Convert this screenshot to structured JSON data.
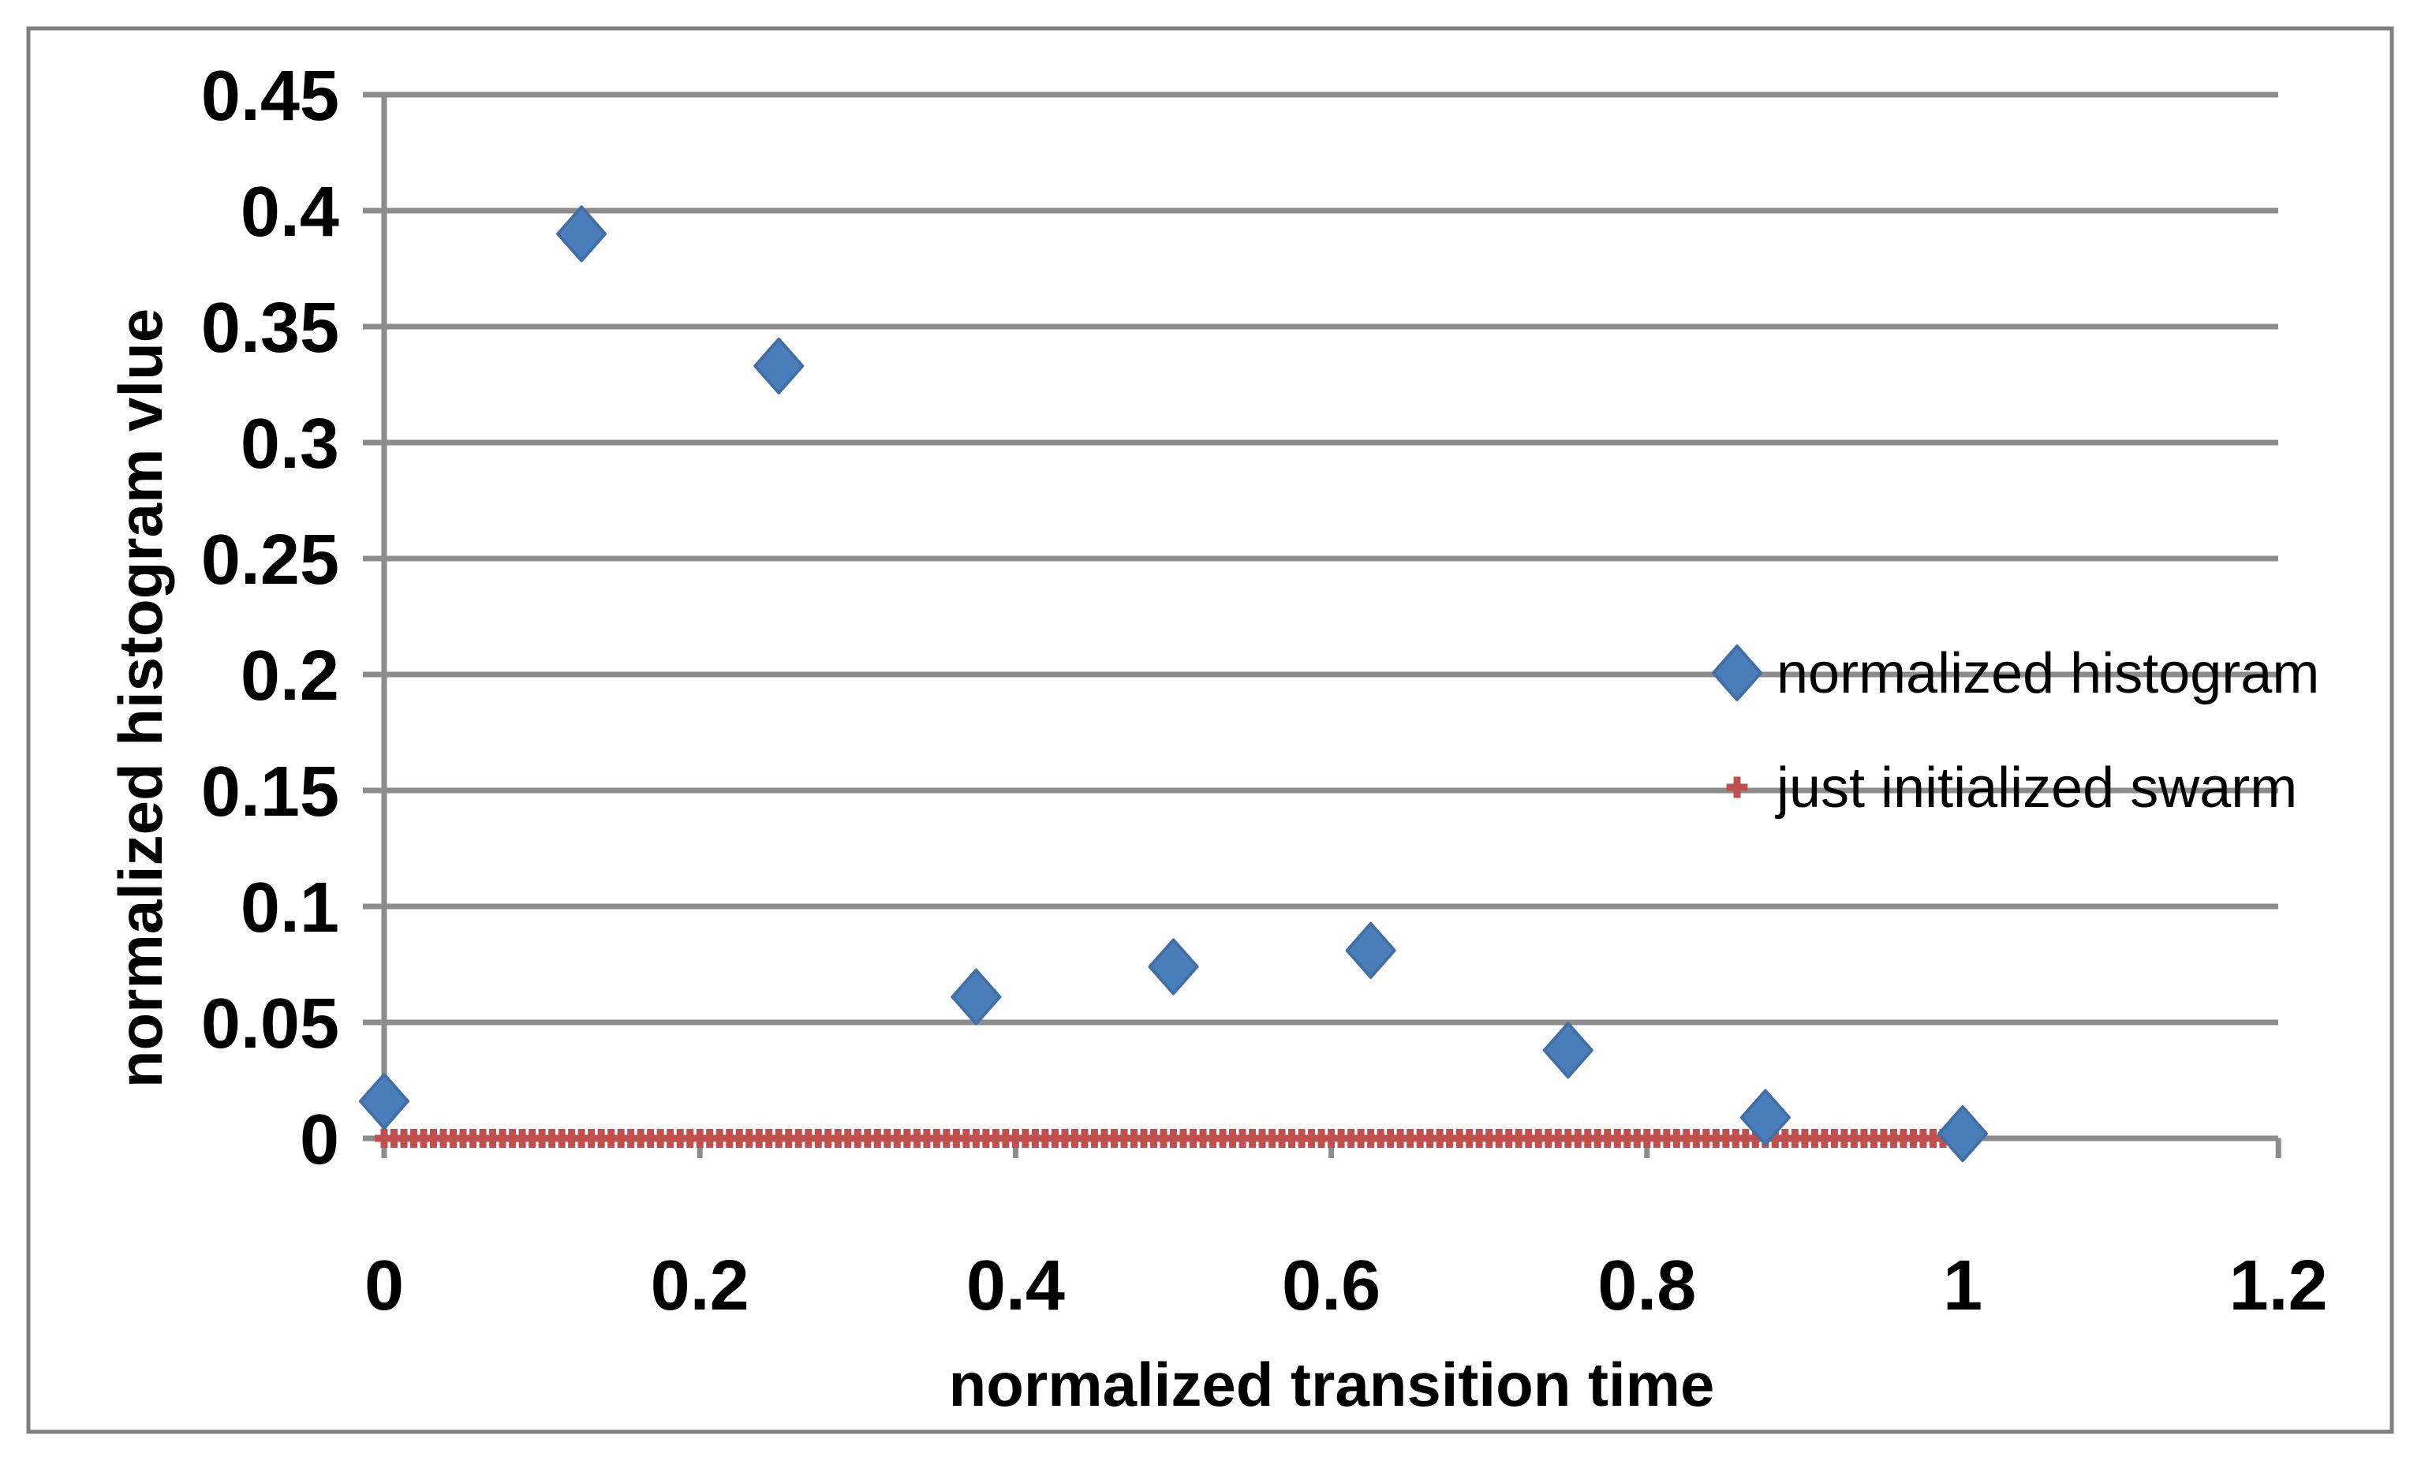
{
  "chart_data": {
    "type": "scatter",
    "title": "",
    "xlabel": "normalized transition time",
    "ylabel": "normalized histogram vlue",
    "xlim": [
      0,
      1.2
    ],
    "ylim": [
      0,
      0.45
    ],
    "grid": "horizontal-only",
    "x_ticks": {
      "values": [
        0,
        0.2,
        0.4,
        0.6,
        0.8,
        1,
        1.2
      ],
      "labels": [
        "0",
        "0.2",
        "0.4",
        "0.6",
        "0.8",
        "1",
        "1.2"
      ]
    },
    "y_ticks": {
      "values": [
        0,
        0.05,
        0.1,
        0.15,
        0.2,
        0.25,
        0.3,
        0.35,
        0.4,
        0.45
      ],
      "labels": [
        "0",
        "0.05",
        "0.1",
        "0.15",
        "0.2",
        "0.25",
        "0.3",
        "0.35",
        "0.4",
        "0.45"
      ]
    },
    "legend": {
      "position": "inside-right",
      "box": "none"
    },
    "series": [
      {
        "name": "normalized histogram",
        "marker": "diamond",
        "color": "#4A7EBB",
        "edge_color": "#416FA6",
        "points": [
          [
            0,
            0.016
          ],
          [
            0.125,
            0.39
          ],
          [
            0.25,
            0.333
          ],
          [
            0.375,
            0.061
          ],
          [
            0.5,
            0.074
          ],
          [
            0.625,
            0.081
          ],
          [
            0.75,
            0.038
          ],
          [
            0.875,
            0.009
          ],
          [
            1.0,
            0.002
          ]
        ]
      },
      {
        "name": "just initialized swarm",
        "marker": "plus",
        "color": "#C0504D",
        "y_value": 0,
        "x_start": 0,
        "x_end": 1,
        "point_count": 161
      }
    ],
    "colors": {
      "gridline": "#8C8C8C",
      "axis": "#8C8C8C",
      "frame": "#7F7F7F",
      "text": "#000000",
      "background": "#FFFFFF"
    }
  }
}
